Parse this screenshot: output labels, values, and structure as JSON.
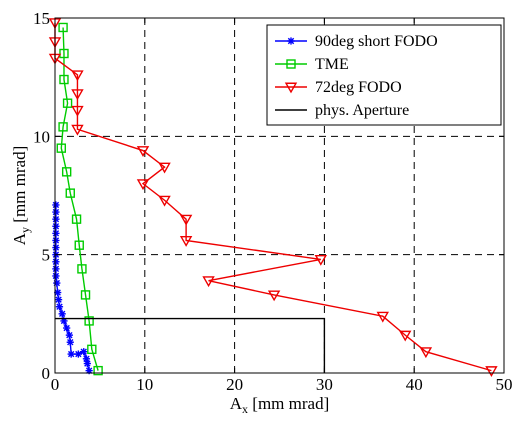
{
  "chart_data": {
    "type": "line",
    "title": "",
    "xlabel": "A",
    "xlabel_sub": "x",
    "xlabel_unit": " [mm mrad]",
    "ylabel": "A",
    "ylabel_sub": "y",
    "ylabel_unit": " [mm mrad]",
    "xlim": [
      0,
      50
    ],
    "ylim": [
      0,
      15
    ],
    "xticks": [
      0,
      10,
      20,
      30,
      40,
      50
    ],
    "yticks": [
      0,
      5,
      10,
      15
    ],
    "xtick_labels": [
      "0",
      "10",
      "20",
      "30",
      "40",
      "50"
    ],
    "ytick_labels": [
      "0",
      "5",
      "10",
      "15"
    ],
    "grid": "dashed",
    "legend_position": "top-right",
    "series": [
      {
        "name": "90deg short FODO",
        "color": "#0000ff",
        "marker": "star",
        "x": [
          3.8,
          3.6,
          3.5,
          3.2,
          2.6,
          1.8,
          1.7,
          1.6,
          1.3,
          1.0,
          0.8,
          0.5,
          0.4,
          0.3,
          0.2,
          0.1,
          0.1,
          0.1,
          0.1,
          0.1,
          0.1,
          0.1,
          0.1,
          0.1,
          0.1,
          0.1
        ],
        "y": [
          0.1,
          0.4,
          0.6,
          0.9,
          0.8,
          0.8,
          1.3,
          1.6,
          1.9,
          2.2,
          2.5,
          2.8,
          3.1,
          3.4,
          3.8,
          4.1,
          4.4,
          4.7,
          5.0,
          5.3,
          5.6,
          5.9,
          6.2,
          6.5,
          6.8,
          7.1
        ]
      },
      {
        "name": "TME",
        "color": "#00cc00",
        "marker": "square",
        "x": [
          4.8,
          4.1,
          3.8,
          3.4,
          3.0,
          2.7,
          2.4,
          1.7,
          1.3,
          0.7,
          0.9,
          1.4,
          1.0,
          1.0,
          0.9
        ],
        "y": [
          0.1,
          1.0,
          2.2,
          3.3,
          4.4,
          5.4,
          6.5,
          7.6,
          8.5,
          9.5,
          10.4,
          11.4,
          12.4,
          13.5,
          14.6
        ]
      },
      {
        "name": "72deg FODO",
        "color": "#ee0000",
        "marker": "triangle-down",
        "x": [
          48.6,
          41.3,
          39.0,
          36.5,
          24.4,
          17.1,
          29.6,
          14.6,
          14.6,
          12.2,
          9.8,
          12.2,
          9.8,
          2.5,
          2.5,
          2.5,
          2.5,
          0.0,
          0.0,
          0.0
        ],
        "y": [
          0.1,
          0.9,
          1.6,
          2.4,
          3.3,
          3.9,
          4.8,
          5.6,
          6.5,
          7.3,
          8.0,
          8.7,
          9.4,
          10.3,
          11.1,
          11.8,
          12.6,
          13.3,
          14.0,
          14.8
        ]
      },
      {
        "name": "phys. Aperture",
        "color": "#000000",
        "marker": "none",
        "x": [
          0,
          30,
          30
        ],
        "y": [
          2.3,
          2.3,
          0
        ]
      }
    ]
  }
}
